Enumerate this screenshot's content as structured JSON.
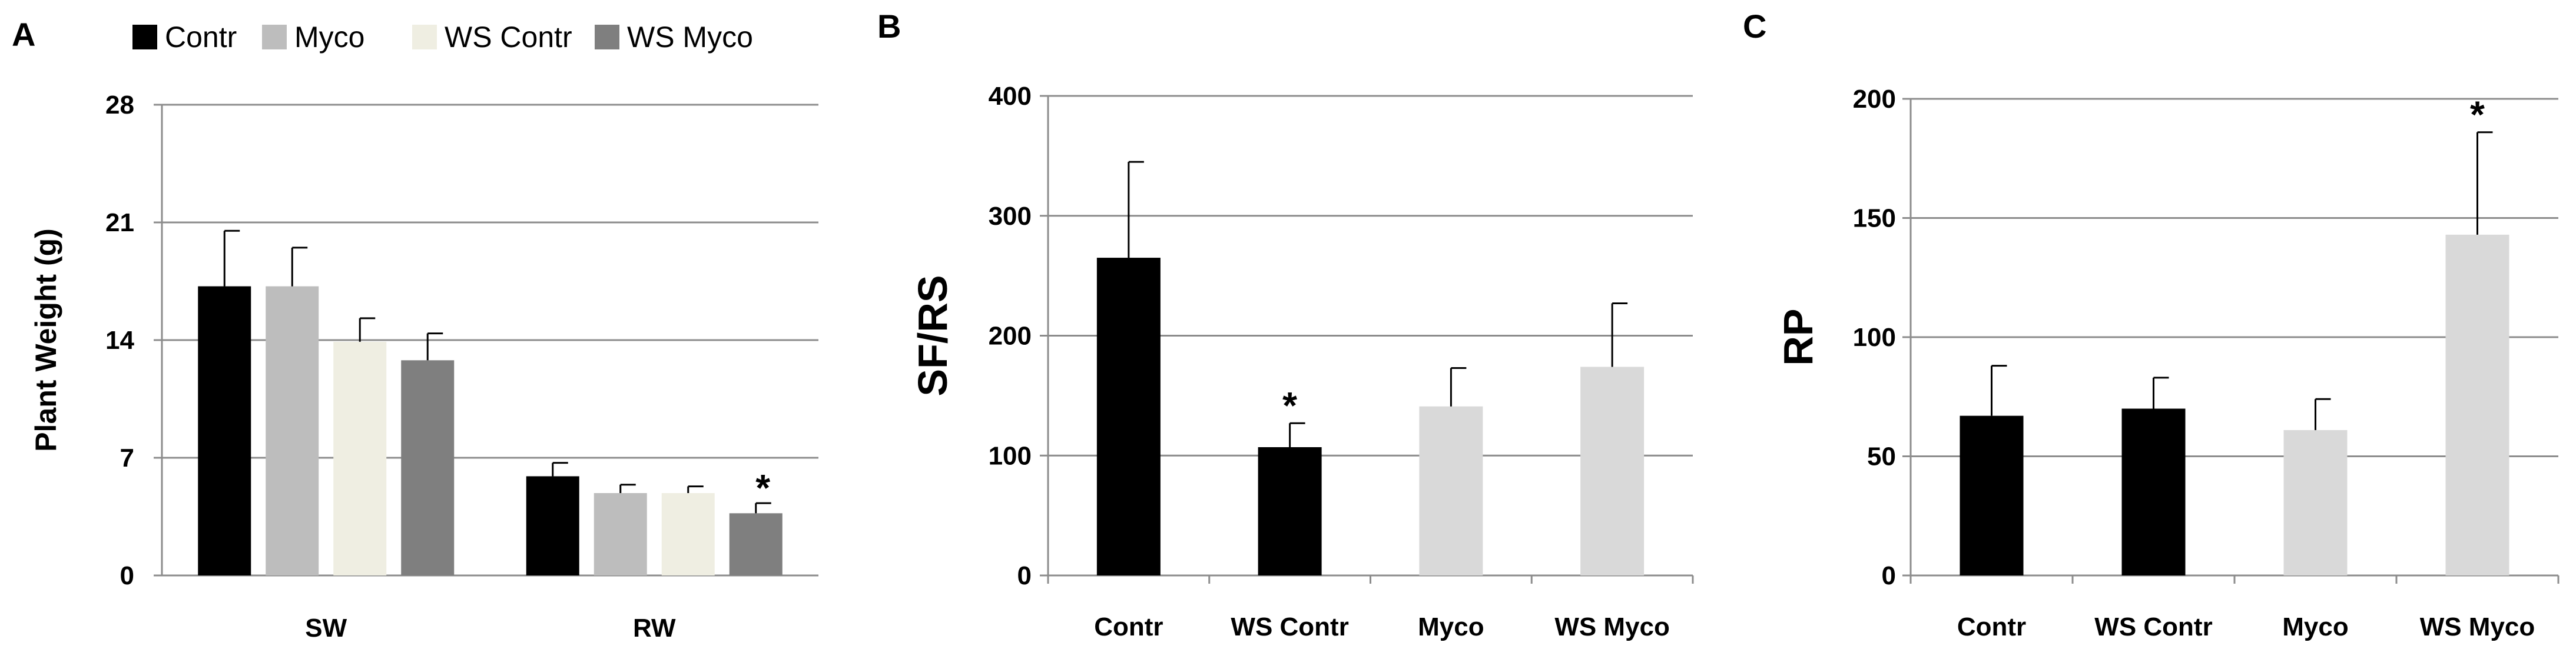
{
  "chart_data": [
    {
      "panel": "A",
      "type": "bar",
      "categories": [
        "SW",
        "RW"
      ],
      "series": [
        {
          "name": "Contr",
          "color": "#000000",
          "values": [
            17.2,
            5.9
          ],
          "errors": [
            3.3,
            0.8
          ]
        },
        {
          "name": "Myco",
          "color": "#bdbdbd",
          "values": [
            17.2,
            4.9
          ],
          "errors": [
            2.3,
            0.5
          ]
        },
        {
          "name": "WS Contr",
          "color": "#efeee2",
          "values": [
            13.9,
            4.9
          ],
          "errors": [
            1.4,
            0.4
          ]
        },
        {
          "name": "WS Myco",
          "color": "#7f7f7f",
          "values": [
            12.8,
            3.7
          ],
          "errors": [
            1.6,
            0.6
          ]
        }
      ],
      "significance": [
        {
          "category": "RW",
          "series": "WS Myco",
          "label": "*"
        }
      ],
      "ylabel": "Plant Weight (g)",
      "ylim": [
        0,
        28
      ],
      "yticks": [
        0,
        7,
        14,
        21,
        28
      ],
      "grid": true,
      "legend": "top"
    },
    {
      "panel": "B",
      "type": "bar",
      "categories": [
        "Contr",
        "WS Contr",
        "Myco",
        "WS Myco"
      ],
      "values": [
        265,
        107,
        141,
        174
      ],
      "errors": [
        80,
        20,
        32,
        53
      ],
      "colors": [
        "#000000",
        "#000000",
        "#d9d9d9",
        "#d9d9d9"
      ],
      "significance": [
        {
          "category": "WS Contr",
          "label": "*"
        }
      ],
      "ylabel": "SF/RS",
      "ylim": [
        0,
        400
      ],
      "yticks": [
        0,
        100,
        200,
        300,
        400
      ],
      "grid": true
    },
    {
      "panel": "C",
      "type": "bar",
      "categories": [
        "Contr",
        "WS Contr",
        "Myco",
        "WS Myco"
      ],
      "values": [
        67,
        70,
        61,
        143
      ],
      "errors": [
        21,
        13,
        13,
        43
      ],
      "colors": [
        "#000000",
        "#000000",
        "#d9d9d9",
        "#d9d9d9"
      ],
      "significance": [
        {
          "category": "WS Myco",
          "label": "*"
        }
      ],
      "ylabel": "RP",
      "ylim": [
        0,
        200
      ],
      "yticks": [
        0,
        50,
        100,
        150,
        200
      ],
      "grid": true
    }
  ]
}
